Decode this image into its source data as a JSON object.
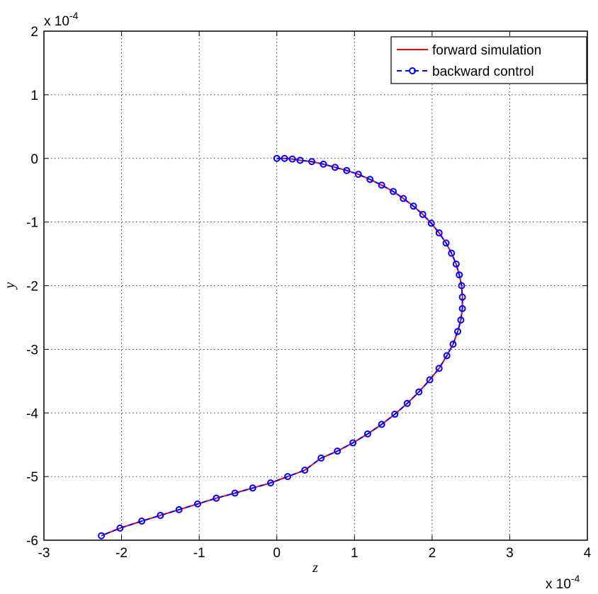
{
  "chart_data": {
    "type": "line",
    "x_label": "z",
    "y_label": "y",
    "x_multiplier": {
      "base": "x 10",
      "exponent": "-4"
    },
    "y_multiplier": {
      "base": "x 10",
      "exponent": "-4"
    },
    "xlim": [
      -3,
      4
    ],
    "ylim": [
      -6,
      2
    ],
    "xticks": [
      -3,
      -2,
      -1,
      0,
      1,
      2,
      3,
      4
    ],
    "yticks": [
      -6,
      -5,
      -4,
      -3,
      -2,
      -1,
      0,
      1,
      2
    ],
    "grid": true,
    "legend": "upper right",
    "series": [
      {
        "name": "forward simulation",
        "color": "#ff0000",
        "style": "solid",
        "x": [
          0,
          0.1,
          0.2,
          0.3,
          0.45,
          0.6,
          0.75,
          0.9,
          1.05,
          1.2,
          1.35,
          1.5,
          1.63,
          1.76,
          1.88,
          1.99,
          2.09,
          2.18,
          2.25,
          2.31,
          2.35,
          2.38,
          2.39,
          2.39,
          2.37,
          2.33,
          2.27,
          2.19,
          2.09,
          1.97,
          1.83,
          1.68,
          1.52,
          1.35,
          1.17,
          0.98,
          0.78,
          0.57,
          0.36,
          0.14,
          -0.08,
          -0.31,
          -0.54,
          -0.78,
          -1.02,
          -1.26,
          -1.5,
          -1.74,
          -2.02,
          -2.26
        ],
        "values": [
          0,
          0,
          -0.01,
          -0.03,
          -0.05,
          -0.09,
          -0.14,
          -0.19,
          -0.25,
          -0.33,
          -0.42,
          -0.52,
          -0.63,
          -0.75,
          -0.88,
          -1.02,
          -1.17,
          -1.33,
          -1.49,
          -1.66,
          -1.83,
          -2.0,
          -2.18,
          -2.36,
          -2.54,
          -2.72,
          -2.92,
          -3.1,
          -3.3,
          -3.48,
          -3.67,
          -3.85,
          -4.02,
          -4.18,
          -4.33,
          -4.47,
          -4.6,
          -4.71,
          -4.9,
          -5.0,
          -5.1,
          -5.18,
          -5.26,
          -5.34,
          -5.43,
          -5.52,
          -5.61,
          -5.7,
          -5.81,
          -5.93
        ]
      },
      {
        "name": "backward control",
        "color": "#0000ff",
        "style": "dashed",
        "marker": "circle",
        "x": [
          0,
          0.1,
          0.2,
          0.3,
          0.45,
          0.6,
          0.75,
          0.9,
          1.05,
          1.2,
          1.35,
          1.5,
          1.63,
          1.76,
          1.88,
          1.99,
          2.09,
          2.18,
          2.25,
          2.31,
          2.35,
          2.38,
          2.39,
          2.39,
          2.37,
          2.33,
          2.27,
          2.19,
          2.09,
          1.97,
          1.83,
          1.68,
          1.52,
          1.35,
          1.17,
          0.98,
          0.78,
          0.57,
          0.36,
          0.14,
          -0.08,
          -0.31,
          -0.54,
          -0.78,
          -1.02,
          -1.26,
          -1.5,
          -1.74,
          -2.02,
          -2.26
        ],
        "values": [
          0,
          0,
          -0.01,
          -0.03,
          -0.05,
          -0.09,
          -0.14,
          -0.19,
          -0.25,
          -0.33,
          -0.42,
          -0.52,
          -0.63,
          -0.75,
          -0.88,
          -1.02,
          -1.17,
          -1.33,
          -1.49,
          -1.66,
          -1.83,
          -2.0,
          -2.18,
          -2.36,
          -2.54,
          -2.72,
          -2.92,
          -3.1,
          -3.3,
          -3.48,
          -3.67,
          -3.85,
          -4.02,
          -4.18,
          -4.33,
          -4.47,
          -4.6,
          -4.71,
          -4.9,
          -5.0,
          -5.1,
          -5.18,
          -5.26,
          -5.34,
          -5.43,
          -5.52,
          -5.61,
          -5.7,
          -5.81,
          -5.93
        ]
      }
    ]
  }
}
